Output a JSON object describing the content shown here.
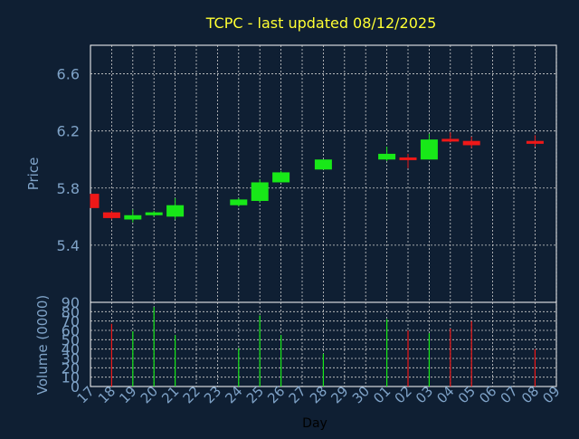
{
  "colors": {
    "background": "#0f1f33",
    "title": "#ffff33",
    "axis_text": "#7fa3c8",
    "grid": "#d0d0d0",
    "up": "#18e818",
    "down": "#ee1818"
  },
  "chart_data": [
    {
      "type": "candlestick",
      "title": "TCPC - last updated 08/12/2025",
      "ylabel": "Price",
      "ylim": [
        5.0,
        6.8
      ],
      "yticks": [
        "5.4",
        "5.8",
        "6.2",
        "6.6"
      ],
      "grid": true,
      "categories": [
        "17",
        "18",
        "19",
        "20",
        "21",
        "22",
        "23",
        "24",
        "25",
        "26",
        "27",
        "28",
        "29",
        "30",
        "01",
        "02",
        "03",
        "04",
        "05",
        "06",
        "07",
        "08",
        "09"
      ],
      "candles": [
        {
          "x": "17",
          "open": 5.76,
          "high": 5.76,
          "low": 5.66,
          "close": 5.66
        },
        {
          "x": "18",
          "open": 5.63,
          "high": 5.64,
          "low": 5.58,
          "close": 5.59
        },
        {
          "x": "19",
          "open": 5.58,
          "high": 5.65,
          "low": 5.56,
          "close": 5.61
        },
        {
          "x": "20",
          "open": 5.61,
          "high": 5.64,
          "low": 5.6,
          "close": 5.63
        },
        {
          "x": "21",
          "open": 5.6,
          "high": 5.73,
          "low": 5.58,
          "close": 5.68
        },
        {
          "x": "24",
          "open": 5.68,
          "high": 5.73,
          "low": 5.67,
          "close": 5.72
        },
        {
          "x": "25",
          "open": 5.71,
          "high": 5.86,
          "low": 5.7,
          "close": 5.84
        },
        {
          "x": "26",
          "open": 5.84,
          "high": 5.92,
          "low": 5.84,
          "close": 5.91
        },
        {
          "x": "28",
          "open": 5.93,
          "high": 6.0,
          "low": 5.93,
          "close": 6.0
        },
        {
          "x": "01",
          "open": 6.0,
          "high": 6.09,
          "low": 5.99,
          "close": 6.04
        },
        {
          "x": "02",
          "open": 6.01,
          "high": 6.04,
          "low": 5.94,
          "close": 6.0
        },
        {
          "x": "03",
          "open": 6.0,
          "high": 6.18,
          "low": 6.0,
          "close": 6.14
        },
        {
          "x": "04",
          "open": 6.14,
          "high": 6.19,
          "low": 6.12,
          "close": 6.13
        },
        {
          "x": "05",
          "open": 6.13,
          "high": 6.16,
          "low": 6.08,
          "close": 6.1
        },
        {
          "x": "08",
          "open": 6.13,
          "high": 6.17,
          "low": 6.09,
          "close": 6.11
        }
      ]
    },
    {
      "type": "bar",
      "ylabel": "Volume (0000)",
      "xlabel": "Day",
      "ylim": [
        0,
        90
      ],
      "yticks": [
        "0",
        "10",
        "20",
        "30",
        "40",
        "50",
        "60",
        "70",
        "80",
        "90"
      ],
      "grid": true,
      "categories": [
        "17",
        "18",
        "19",
        "20",
        "21",
        "22",
        "23",
        "24",
        "25",
        "26",
        "27",
        "28",
        "29",
        "30",
        "01",
        "02",
        "03",
        "04",
        "05",
        "06",
        "07",
        "08",
        "09"
      ],
      "volumes": [
        {
          "x": "18",
          "value": 67,
          "direction": "down"
        },
        {
          "x": "19",
          "value": 59,
          "direction": "up"
        },
        {
          "x": "20",
          "value": 85,
          "direction": "up"
        },
        {
          "x": "21",
          "value": 55,
          "direction": "up"
        },
        {
          "x": "24",
          "value": 41,
          "direction": "up"
        },
        {
          "x": "25",
          "value": 76,
          "direction": "up"
        },
        {
          "x": "26",
          "value": 55,
          "direction": "up"
        },
        {
          "x": "28",
          "value": 35,
          "direction": "up"
        },
        {
          "x": "01",
          "value": 72,
          "direction": "up"
        },
        {
          "x": "02",
          "value": 60,
          "direction": "down"
        },
        {
          "x": "03",
          "value": 57,
          "direction": "up"
        },
        {
          "x": "04",
          "value": 62,
          "direction": "down"
        },
        {
          "x": "05",
          "value": 70,
          "direction": "down"
        },
        {
          "x": "08",
          "value": 40,
          "direction": "down"
        }
      ]
    }
  ]
}
